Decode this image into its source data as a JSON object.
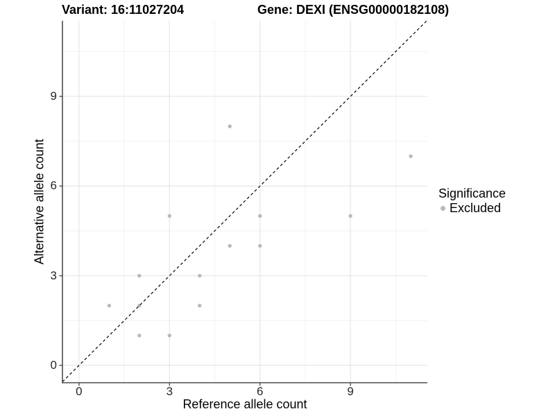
{
  "header": {
    "variant_title": "Variant: 16:11027204",
    "gene_title": "Gene: DEXI (ENSG00000182108)"
  },
  "legend": {
    "title": "Significance",
    "items": [
      {
        "label": "Excluded",
        "color": "#b9b9b9"
      }
    ]
  },
  "chart_data": {
    "type": "scatter",
    "title_left": "Variant: 16:11027204",
    "title_right": "Gene: DEXI (ENSG00000182108)",
    "xlabel": "Reference allele count",
    "ylabel": "Alternative allele count",
    "xlim": [
      -0.55,
      11.55
    ],
    "ylim": [
      -0.58,
      11.53
    ],
    "x_ticks": [
      0,
      3,
      6,
      9
    ],
    "y_ticks": [
      0,
      3,
      6,
      9
    ],
    "x_minor_gridlines": [
      1.5,
      4.5,
      7.5,
      10.5
    ],
    "y_minor_gridlines": [
      1.5,
      4.5,
      7.5,
      10.5
    ],
    "grid": "major-and-minor",
    "legend_position": "right",
    "identity_line": {
      "equation": "y = x",
      "style": "dashed",
      "color": "#000000"
    },
    "series": [
      {
        "name": "Excluded",
        "color": "#b9b9b9",
        "points": [
          {
            "x": 1,
            "y": 2
          },
          {
            "x": 2,
            "y": 1
          },
          {
            "x": 2,
            "y": 2
          },
          {
            "x": 2,
            "y": 3
          },
          {
            "x": 3,
            "y": 1
          },
          {
            "x": 3,
            "y": 5
          },
          {
            "x": 4,
            "y": 2
          },
          {
            "x": 4,
            "y": 3
          },
          {
            "x": 5,
            "y": 4
          },
          {
            "x": 5,
            "y": 8
          },
          {
            "x": 6,
            "y": 4
          },
          {
            "x": 6,
            "y": 5
          },
          {
            "x": 9,
            "y": 5
          },
          {
            "x": 11,
            "y": 7
          }
        ]
      }
    ]
  },
  "colors": {
    "point": "#b9b9b9",
    "grid_major": "#e6e6e6",
    "grid_minor": "#f2f2f2",
    "axis": "#4d4d4d",
    "identity_line": "#000000",
    "background": "#ffffff"
  }
}
